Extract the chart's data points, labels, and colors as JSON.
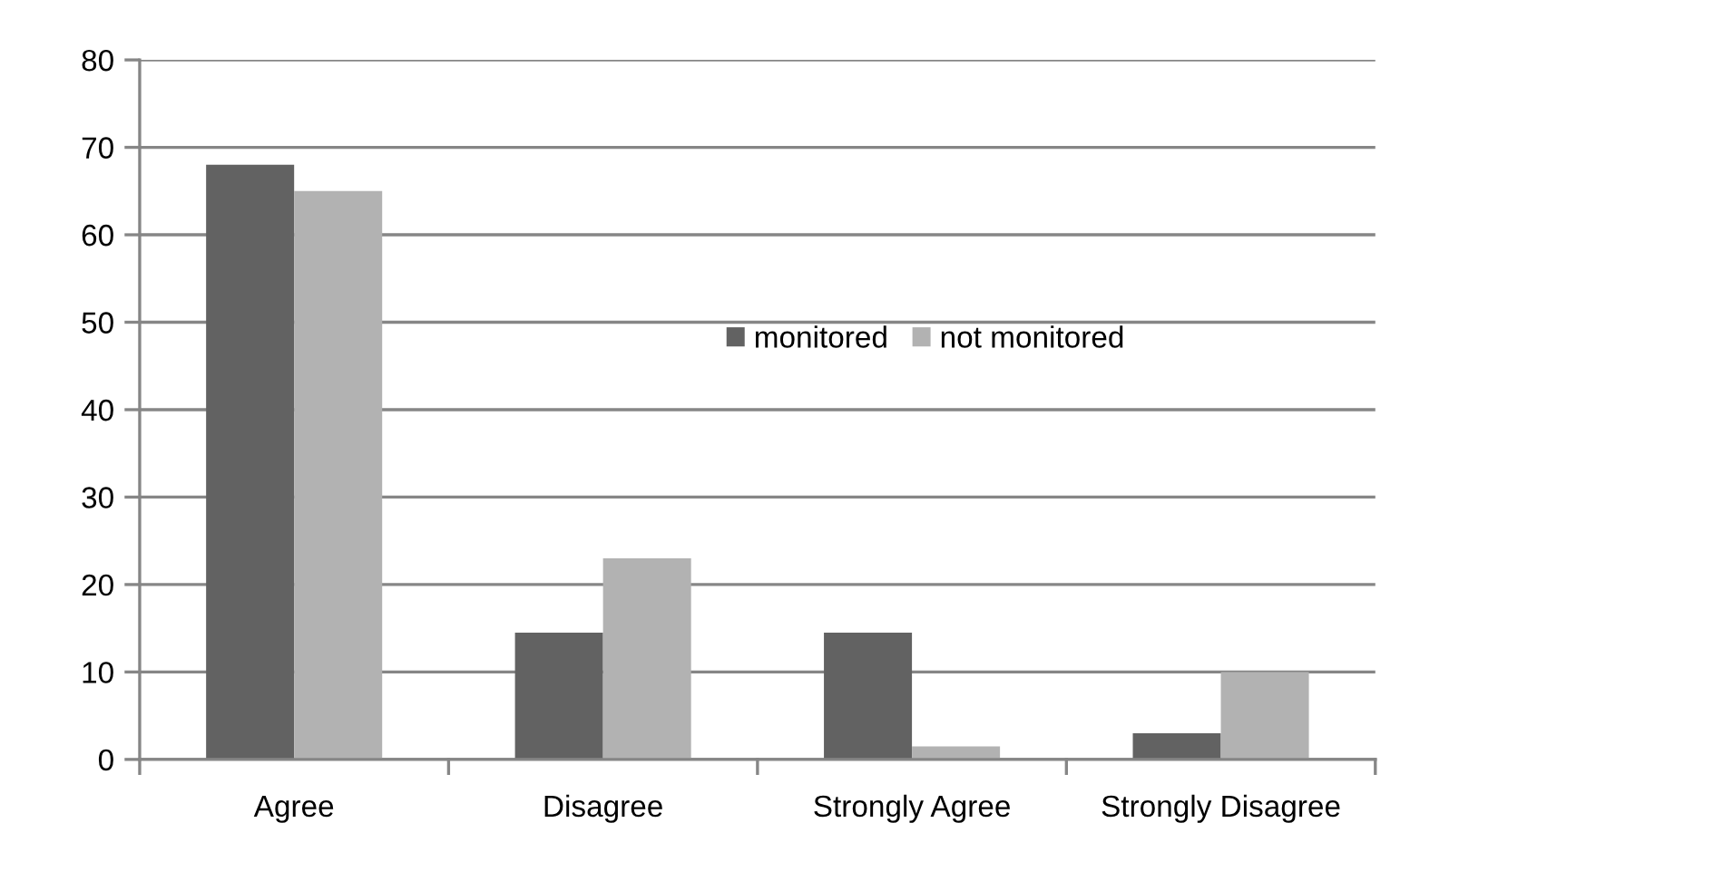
{
  "chart_data": {
    "type": "bar",
    "categories": [
      "Agree",
      "Disagree",
      "Strongly Agree",
      "Strongly Disagree"
    ],
    "series": [
      {
        "name": "monitored",
        "color": "#626262",
        "values": [
          68,
          14.5,
          14.5,
          3
        ]
      },
      {
        "name": "not monitored",
        "color": "#b2b2b2",
        "values": [
          65,
          23,
          1.5,
          10
        ]
      }
    ],
    "ylim": [
      0,
      80
    ],
    "yticks": [
      0,
      10,
      20,
      30,
      40,
      50,
      60,
      70,
      80
    ],
    "grid": "y",
    "legend": "center"
  }
}
